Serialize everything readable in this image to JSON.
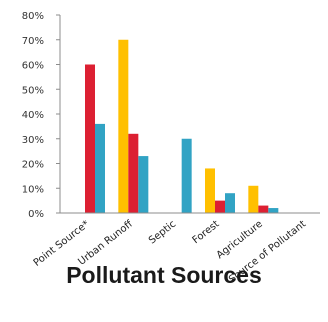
{
  "chart_data": {
    "type": "bar",
    "title": "Pollutant Sources",
    "categories": [
      "Point Source*",
      "Urban Runoff",
      "Septic",
      "Forest",
      "Agriculture",
      "Source of Pollutant"
    ],
    "series": [
      {
        "color": "#ffc000",
        "values": [
          0,
          70,
          0,
          18,
          11,
          0
        ]
      },
      {
        "color": "#dc2032",
        "values": [
          60,
          32,
          0,
          5,
          3,
          0
        ]
      },
      {
        "color": "#31a3c4",
        "values": [
          36,
          23,
          30,
          8,
          2,
          0
        ]
      }
    ],
    "y_ticks": [
      "0%",
      "10%",
      "20%",
      "30%",
      "40%",
      "50%",
      "60%",
      "70%",
      "80%"
    ],
    "ylim": [
      0,
      80
    ],
    "grid": false,
    "legend": "none"
  }
}
